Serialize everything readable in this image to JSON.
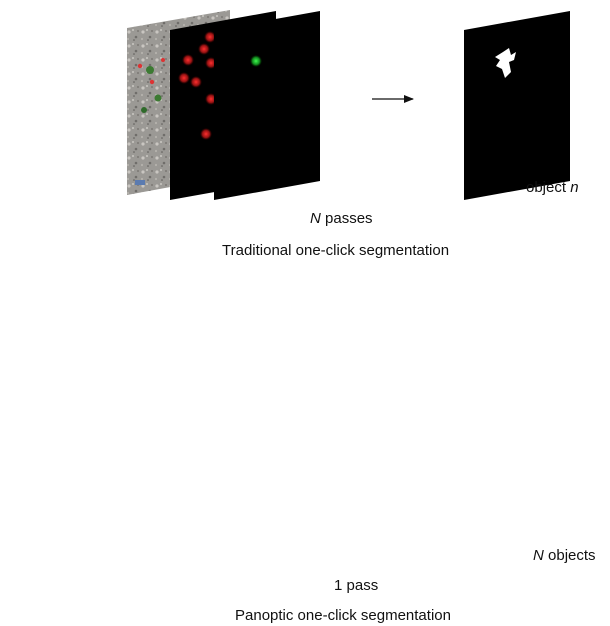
{
  "top": {
    "pass_count_symbol": "N",
    "pass_word": "passes",
    "method_label": "Traditional one-click segmentation",
    "output_word": "object",
    "output_index_symbol": "n"
  },
  "bottom": {
    "pass_label": "1 pass",
    "method_label": "Panoptic one-click segmentation",
    "output_count_symbol": "N",
    "output_word": "objects"
  },
  "colors": {
    "plate_black": "#000000",
    "red_click": "#e0211f",
    "green_click": "#22d23a",
    "cyan_plate": "#27e6ee",
    "soil_gray": "#9a9896"
  }
}
